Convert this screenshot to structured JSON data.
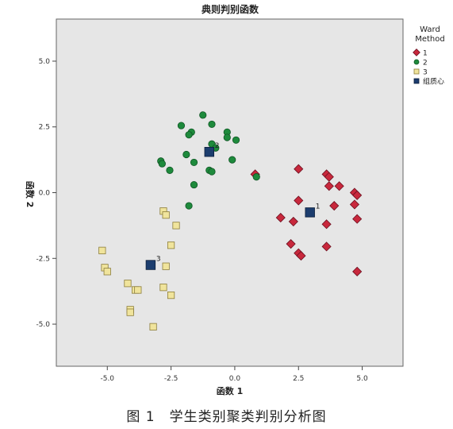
{
  "caption": "图 1　学生类别聚类判别分析图",
  "chart_data": {
    "type": "scatter",
    "title": "典则判别函数",
    "xlabel": "函数 1",
    "ylabel": "函数 2",
    "xlim": [
      -7.0,
      6.6
    ],
    "ylim": [
      -6.6,
      6.6
    ],
    "xticks": [
      -5.0,
      -2.5,
      0.0,
      2.5,
      5.0
    ],
    "yticks": [
      -5.0,
      -2.5,
      0.0,
      2.5,
      5.0
    ],
    "xtick_labels": [
      "-5.0",
      "-2.5",
      "0.0",
      "2.5",
      "5.0"
    ],
    "ytick_labels": [
      "-5.0",
      "-2.5",
      "0.0",
      "2.5",
      "5.0"
    ],
    "grid": false,
    "background": "#e6e6e6",
    "legend": {
      "title_line1": "Ward",
      "title_line2": "Method",
      "placement": "right"
    },
    "series": [
      {
        "name": "1",
        "marker": "diamond",
        "color": "#c8283c",
        "points": [
          [
            0.8,
            0.7
          ],
          [
            2.5,
            0.9
          ],
          [
            3.6,
            0.7
          ],
          [
            3.7,
            0.6
          ],
          [
            4.7,
            0.0
          ],
          [
            4.8,
            -0.1
          ],
          [
            3.7,
            0.25
          ],
          [
            4.1,
            0.25
          ],
          [
            2.5,
            -0.3
          ],
          [
            1.8,
            -0.95
          ],
          [
            2.3,
            -1.1
          ],
          [
            3.9,
            -0.5
          ],
          [
            4.7,
            -0.45
          ],
          [
            3.6,
            -1.2
          ],
          [
            4.8,
            -1.0
          ],
          [
            2.2,
            -1.95
          ],
          [
            2.5,
            -2.3
          ],
          [
            2.6,
            -2.4
          ],
          [
            3.6,
            -2.05
          ],
          [
            4.8,
            -3.0
          ]
        ]
      },
      {
        "name": "2",
        "marker": "circle",
        "color": "#1e8a3c",
        "points": [
          [
            -1.25,
            2.95
          ],
          [
            -2.1,
            2.55
          ],
          [
            -1.7,
            2.3
          ],
          [
            -1.8,
            2.2
          ],
          [
            -0.9,
            2.6
          ],
          [
            -0.3,
            2.3
          ],
          [
            -0.3,
            2.1
          ],
          [
            0.05,
            2.0
          ],
          [
            -0.9,
            1.85
          ],
          [
            -0.75,
            1.7
          ],
          [
            -2.9,
            1.2
          ],
          [
            -2.85,
            1.1
          ],
          [
            -1.9,
            1.45
          ],
          [
            -1.6,
            1.15
          ],
          [
            -1.0,
            0.85
          ],
          [
            -0.9,
            0.8
          ],
          [
            -0.1,
            1.25
          ],
          [
            -2.55,
            0.85
          ],
          [
            0.85,
            0.6
          ],
          [
            -1.6,
            0.3
          ],
          [
            -1.8,
            -0.5
          ]
        ]
      },
      {
        "name": "3",
        "marker": "square",
        "color": "#f0e49c",
        "points": [
          [
            -2.8,
            -0.7
          ],
          [
            -2.7,
            -0.85
          ],
          [
            -2.3,
            -1.25
          ],
          [
            -2.5,
            -2.0
          ],
          [
            -5.2,
            -2.2
          ],
          [
            -5.1,
            -2.85
          ],
          [
            -5.0,
            -3.0
          ],
          [
            -4.2,
            -3.45
          ],
          [
            -3.9,
            -3.7
          ],
          [
            -3.8,
            -3.7
          ],
          [
            -2.8,
            -3.6
          ],
          [
            -2.5,
            -3.9
          ],
          [
            -2.7,
            -2.8
          ],
          [
            -4.1,
            -4.45
          ],
          [
            -4.1,
            -4.55
          ],
          [
            -3.2,
            -5.1
          ]
        ]
      }
    ],
    "centroids": {
      "name": "组质心",
      "marker": "square",
      "color": "#1c3d6e",
      "points": [
        {
          "label": "1",
          "x": 2.95,
          "y": -0.75
        },
        {
          "label": "2",
          "x": -1.0,
          "y": 1.55
        },
        {
          "label": "3",
          "x": -3.3,
          "y": -2.75
        }
      ]
    }
  }
}
